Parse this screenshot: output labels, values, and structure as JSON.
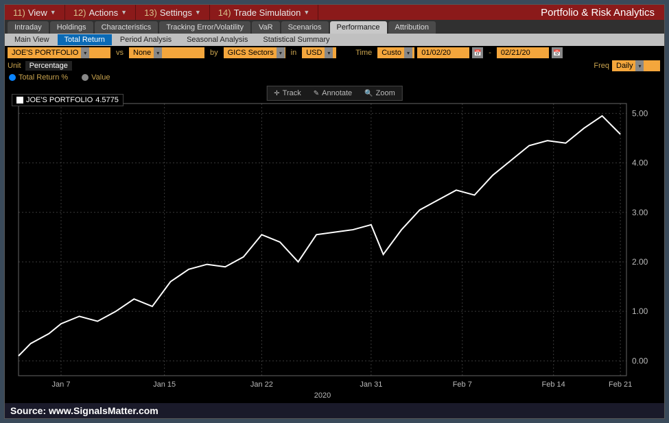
{
  "menubar": {
    "items": [
      {
        "num": "11)",
        "label": "View"
      },
      {
        "num": "12)",
        "label": "Actions"
      },
      {
        "num": "13)",
        "label": "Settings"
      },
      {
        "num": "14)",
        "label": "Trade Simulation"
      }
    ],
    "title": "Portfolio & Risk Analytics"
  },
  "tabs": [
    "Intraday",
    "Holdings",
    "Characteristics",
    "Tracking Error/Volatility",
    "VaR",
    "Scenarios",
    "Performance",
    "Attribution"
  ],
  "tabs_active_index": 6,
  "subtabs": [
    "Main View",
    "Total Return",
    "Period Analysis",
    "Seasonal Analysis",
    "Statistical Summary"
  ],
  "subtabs_active_index": 1,
  "filter": {
    "portfolio": "JOE'S PORTFOLIO",
    "vs": "vs",
    "benchmark": "None",
    "by": "by",
    "sector": "GICS Sectors",
    "in": "in",
    "currency": "USD",
    "time_label": "Time",
    "time_value": "Custo",
    "date_from": "01/02/20",
    "date_to": "02/21/20",
    "unit_label": "Unit",
    "unit_value": "Percentage",
    "freq_label": "Freq",
    "freq_value": "Daily",
    "series1_label": "Total Return %",
    "series2_label": "Value"
  },
  "chart": {
    "type": "line",
    "series_name": "JOE'S PORTFOLIO",
    "series_value": "4.5775",
    "line_color": "#ffffff",
    "line_width": 2,
    "background": "#000000",
    "grid_color": "#3a3a3a",
    "axis_label_color": "#bababa",
    "xlabel_year": "2020",
    "x_ticks": [
      "Jan 7",
      "Jan 15",
      "Jan 22",
      "Jan 31",
      "Feb 7",
      "Feb 14",
      "Feb 21"
    ],
    "x_tick_positions": [
      0.07,
      0.24,
      0.4,
      0.58,
      0.73,
      0.88,
      0.99
    ],
    "ylim": [
      -0.3,
      5.2
    ],
    "y_ticks": [
      0,
      1,
      2,
      3,
      4,
      5
    ],
    "data": [
      [
        0.0,
        0.1
      ],
      [
        0.02,
        0.35
      ],
      [
        0.05,
        0.55
      ],
      [
        0.07,
        0.75
      ],
      [
        0.1,
        0.9
      ],
      [
        0.13,
        0.8
      ],
      [
        0.16,
        1.0
      ],
      [
        0.19,
        1.25
      ],
      [
        0.22,
        1.1
      ],
      [
        0.25,
        1.6
      ],
      [
        0.28,
        1.85
      ],
      [
        0.31,
        1.95
      ],
      [
        0.34,
        1.9
      ],
      [
        0.37,
        2.1
      ],
      [
        0.4,
        2.55
      ],
      [
        0.43,
        2.4
      ],
      [
        0.46,
        2.0
      ],
      [
        0.49,
        2.55
      ],
      [
        0.52,
        2.6
      ],
      [
        0.55,
        2.65
      ],
      [
        0.58,
        2.75
      ],
      [
        0.6,
        2.15
      ],
      [
        0.63,
        2.65
      ],
      [
        0.66,
        3.05
      ],
      [
        0.69,
        3.25
      ],
      [
        0.72,
        3.45
      ],
      [
        0.75,
        3.35
      ],
      [
        0.78,
        3.75
      ],
      [
        0.81,
        4.05
      ],
      [
        0.84,
        4.35
      ],
      [
        0.87,
        4.45
      ],
      [
        0.9,
        4.4
      ],
      [
        0.93,
        4.7
      ],
      [
        0.96,
        4.95
      ],
      [
        0.99,
        4.58
      ]
    ],
    "toolbar": {
      "track": "Track",
      "annotate": "Annotate",
      "zoom": "Zoom"
    }
  },
  "source": "Source: www.SignalsMatter.com"
}
